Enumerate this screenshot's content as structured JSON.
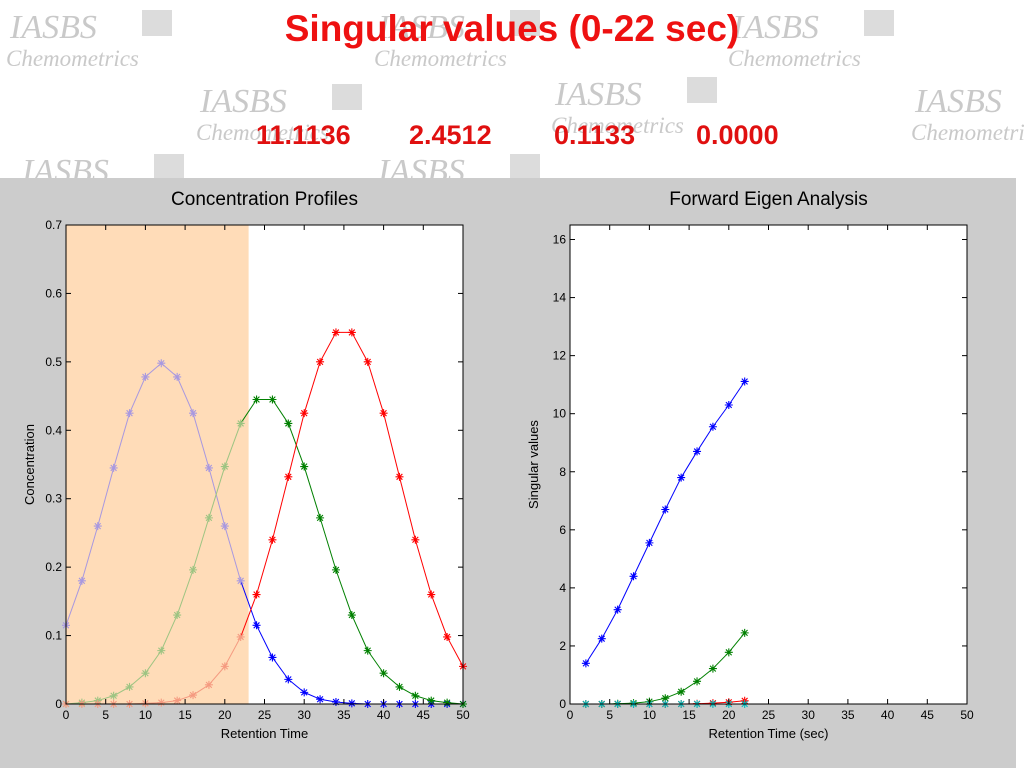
{
  "slide": {
    "title": "Singular values  (0-22 sec)",
    "values": [
      "11.1136",
      "2.4512",
      "0.1133",
      "0.0000"
    ],
    "watermark": {
      "line1": "IASBS",
      "line2": "Chemometrics"
    }
  },
  "chart_data": [
    {
      "type": "line",
      "title": "Concentration Profiles",
      "xlabel": "Retention Time",
      "ylabel": "Concentration",
      "xlim": [
        0,
        50
      ],
      "ylim": [
        0,
        0.7
      ],
      "xticks": [
        0,
        5,
        10,
        15,
        20,
        25,
        30,
        35,
        40,
        45,
        50
      ],
      "yticks": [
        0,
        0.1,
        0.2,
        0.3,
        0.4,
        0.5,
        0.6,
        0.7
      ],
      "grid": false,
      "marker": "*",
      "highlight": {
        "x_range": [
          0,
          23
        ],
        "color": "#ffdcb8"
      },
      "x": [
        0,
        2,
        4,
        6,
        8,
        10,
        12,
        14,
        16,
        18,
        20,
        22,
        24,
        26,
        28,
        30,
        32,
        34,
        36,
        38,
        40,
        42,
        44,
        46,
        48,
        50
      ],
      "series": [
        {
          "color": "#0000ff",
          "faded_color": "#a898e0",
          "values": [
            0.115,
            0.18,
            0.26,
            0.345,
            0.425,
            0.478,
            0.498,
            0.478,
            0.425,
            0.345,
            0.26,
            0.18,
            0.115,
            0.068,
            0.036,
            0.017,
            0.007,
            0.003,
            0.001,
            0.0,
            0.0,
            0.0,
            0.0,
            0.0,
            0.0,
            0.0
          ]
        },
        {
          "color": "#008000",
          "faded_color": "#9dc482",
          "values": [
            0.0,
            0.002,
            0.005,
            0.012,
            0.025,
            0.045,
            0.078,
            0.13,
            0.196,
            0.272,
            0.347,
            0.41,
            0.445,
            0.445,
            0.41,
            0.347,
            0.272,
            0.196,
            0.13,
            0.078,
            0.045,
            0.025,
            0.012,
            0.005,
            0.002,
            0.0
          ]
        },
        {
          "color": "#ff0000",
          "faded_color": "#f59a80",
          "values": [
            0.0,
            0.0,
            0.0,
            0.0,
            0.0,
            0.001,
            0.002,
            0.005,
            0.013,
            0.028,
            0.055,
            0.098,
            0.16,
            0.24,
            0.332,
            0.425,
            0.5,
            0.543,
            0.543,
            0.5,
            0.425,
            0.332,
            0.24,
            0.16,
            0.098,
            0.055
          ]
        }
      ]
    },
    {
      "type": "line",
      "title": "Forward Eigen Analysis",
      "xlabel": "Retention Time (sec)",
      "ylabel": "Singular values",
      "xlim": [
        0,
        50
      ],
      "ylim": [
        0,
        16.5
      ],
      "xticks": [
        0,
        5,
        10,
        15,
        20,
        25,
        30,
        35,
        40,
        45,
        50
      ],
      "yticks": [
        0,
        2,
        4,
        6,
        8,
        10,
        12,
        14,
        16
      ],
      "grid": false,
      "marker": "*",
      "x": [
        2,
        4,
        6,
        8,
        10,
        12,
        14,
        16,
        18,
        20,
        22
      ],
      "series": [
        {
          "color": "#0000ff",
          "values": [
            1.4,
            2.25,
            3.25,
            4.4,
            5.55,
            6.7,
            7.8,
            8.7,
            9.55,
            10.3,
            11.11
          ]
        },
        {
          "color": "#008000",
          "values": [
            0.0,
            0.0,
            0.01,
            0.03,
            0.08,
            0.2,
            0.42,
            0.78,
            1.22,
            1.78,
            2.45
          ]
        },
        {
          "color": "#ff0000",
          "values": [
            0.0,
            0.0,
            0.0,
            0.0,
            0.0,
            0.0,
            0.0,
            0.01,
            0.03,
            0.06,
            0.11
          ]
        },
        {
          "color": "#00bfbf",
          "values": [
            0.0,
            0.0,
            0.0,
            0.0,
            0.0,
            0.0,
            0.0,
            0.0,
            0.0,
            0.0,
            0.0
          ]
        }
      ]
    }
  ]
}
